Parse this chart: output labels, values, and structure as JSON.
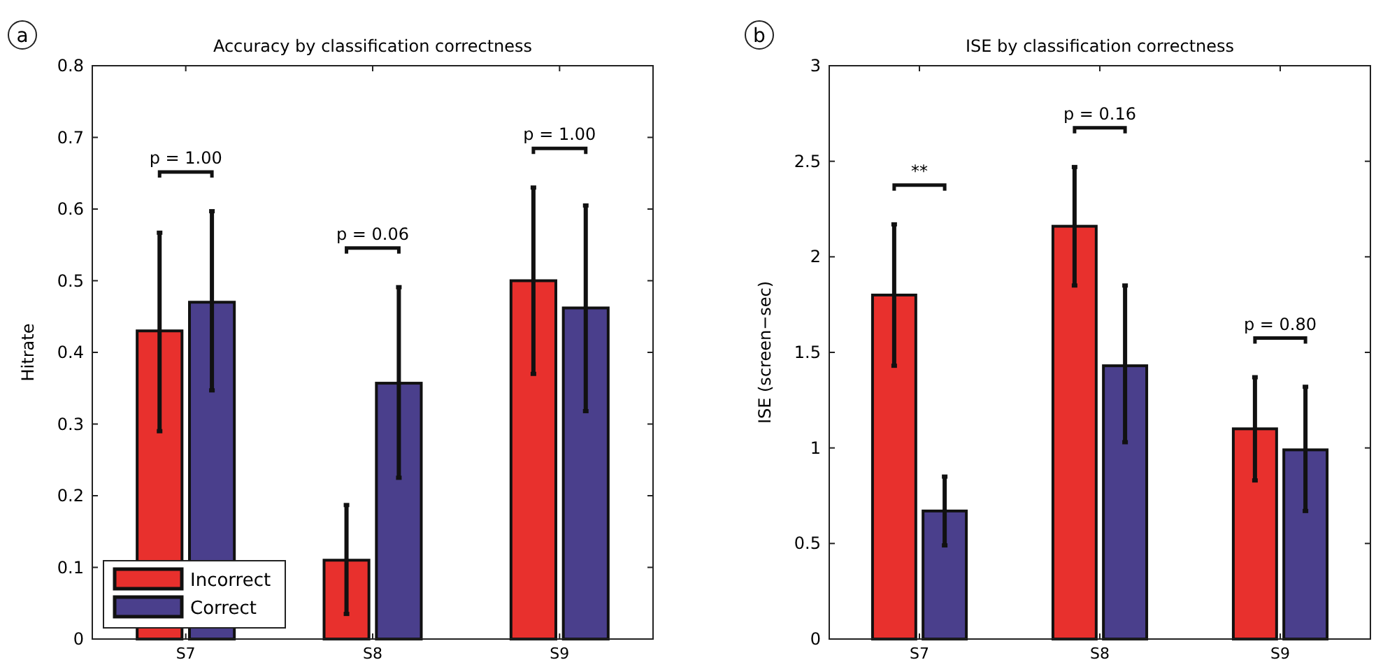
{
  "chart_data": [
    {
      "type": "bar",
      "title": "Accuracy by classification correctness",
      "ylabel": "Hitrate",
      "categories": [
        "S7",
        "S8",
        "S9"
      ],
      "series": [
        {
          "name": "Incorrect",
          "color": "#e8302d",
          "values": [
            0.43,
            0.11,
            0.5
          ],
          "errors": [
            [
              0.29,
              0.567
            ],
            [
              0.035,
              0.187
            ],
            [
              0.37,
              0.63
            ]
          ]
        },
        {
          "name": "Correct",
          "color": "#4a3f8c",
          "values": [
            0.47,
            0.357,
            0.462
          ],
          "errors": [
            [
              0.347,
              0.597
            ],
            [
              0.225,
              0.491
            ],
            [
              0.318,
              0.605
            ]
          ]
        }
      ],
      "ylim": [
        0,
        0.8
      ],
      "yticks": [
        0,
        0.1,
        0.2,
        0.3,
        0.4,
        0.5,
        0.6,
        0.7,
        0.8
      ],
      "legend": "bottom left",
      "annotations": [
        "a",
        "p = 1.00",
        "p = 0.06",
        "p = 1.00"
      ]
    },
    {
      "type": "bar",
      "title": "ISE by classification correctness",
      "ylabel": "ISE (screen−sec)",
      "categories": [
        "S7",
        "S8",
        "S9"
      ],
      "series": [
        {
          "color": "#e8302d",
          "values": [
            1.8,
            2.16,
            1.1
          ],
          "errors": [
            [
              1.43,
              2.17
            ],
            [
              1.85,
              2.47
            ],
            [
              0.83,
              1.37
            ]
          ]
        },
        {
          "color": "#4a3f8c",
          "values": [
            0.67,
            1.43,
            0.99
          ],
          "errors": [
            [
              0.49,
              0.85
            ],
            [
              1.03,
              1.85
            ],
            [
              0.67,
              1.32
            ]
          ]
        }
      ],
      "ylim": [
        0,
        3
      ],
      "yticks": [
        0,
        0.5,
        1,
        1.5,
        2,
        2.5,
        3
      ],
      "legend": false,
      "annotations": [
        "b",
        "**",
        "p = 0.16",
        "p = 0.80"
      ]
    }
  ]
}
